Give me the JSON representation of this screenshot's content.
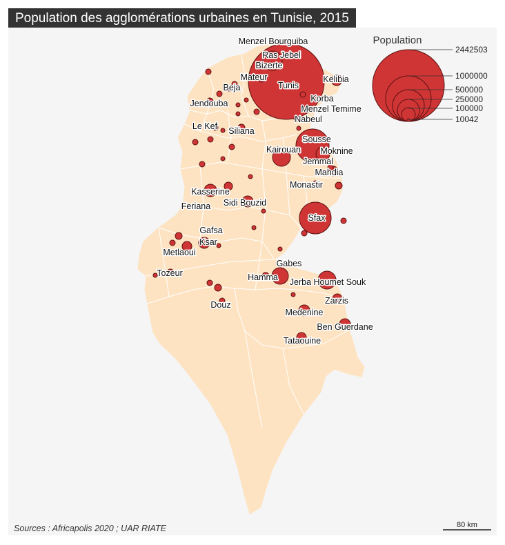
{
  "title": "Population des agglomérations urbaines en Tunisie, 2015",
  "legend": {
    "title": "Population",
    "values": [
      "2442503",
      "1000000",
      "500000",
      "250000",
      "100000",
      "10042"
    ]
  },
  "colors": {
    "land": "#fde3c2",
    "border": "#ffffff",
    "circle": "#d03535",
    "circle_stroke": "#5a1010",
    "panel": "#f5f5f5"
  },
  "cities": [
    {
      "name": "Menzel Bourguiba"
    },
    {
      "name": "Ras Jebel"
    },
    {
      "name": "Bizerte"
    },
    {
      "name": "Mateur"
    },
    {
      "name": "Tunis"
    },
    {
      "name": "Kelibia"
    },
    {
      "name": "Beja"
    },
    {
      "name": "Korba"
    },
    {
      "name": "Jendouba"
    },
    {
      "name": "Menzel Temime"
    },
    {
      "name": "Nabeul"
    },
    {
      "name": "Le Kef"
    },
    {
      "name": "Siliana"
    },
    {
      "name": "Sousse"
    },
    {
      "name": "Kairouan"
    },
    {
      "name": "Moknine"
    },
    {
      "name": "Jemmal"
    },
    {
      "name": "Mahdia"
    },
    {
      "name": "Monastir"
    },
    {
      "name": "Kasserine"
    },
    {
      "name": "Sidi Bouzid"
    },
    {
      "name": "Feriana"
    },
    {
      "name": "Sfax"
    },
    {
      "name": "Gafsa"
    },
    {
      "name": "Ksar"
    },
    {
      "name": "Metlaoui"
    },
    {
      "name": "Gabes"
    },
    {
      "name": "Tozeur"
    },
    {
      "name": "Hamma"
    },
    {
      "name": "Jerba Houmet Souk"
    },
    {
      "name": "Zarzis"
    },
    {
      "name": "Douz"
    },
    {
      "name": "Medenine"
    },
    {
      "name": "Ben Guerdane"
    },
    {
      "name": "Tataouine"
    }
  ],
  "source": "Sources : Africapolis 2020 ; UAR RIATE",
  "scale": {
    "label": "80 km"
  }
}
